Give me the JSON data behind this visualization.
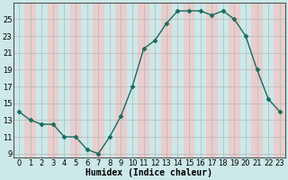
{
  "x": [
    0,
    1,
    2,
    3,
    4,
    5,
    6,
    7,
    8,
    9,
    10,
    11,
    12,
    13,
    14,
    15,
    16,
    17,
    18,
    19,
    20,
    21,
    22,
    23
  ],
  "y": [
    14,
    13,
    12.5,
    12.5,
    11,
    11,
    9.5,
    9,
    11,
    13.5,
    17,
    21.5,
    22.5,
    24.5,
    26,
    26,
    26,
    25.5,
    26,
    25,
    23,
    19,
    15.5,
    14
  ],
  "line_color": "#1a6b5e",
  "marker_color": "#1a6b5e",
  "bg_color": "#cce8e8",
  "grid_color_a": "#cce8e8",
  "grid_color_b": "#e8cece",
  "grid_line_color": "#b0b0b0",
  "xlabel": "Humidex (Indice chaleur)",
  "ylabel_ticks": [
    9,
    11,
    13,
    15,
    17,
    19,
    21,
    23,
    25
  ],
  "xlim": [
    -0.5,
    23.5
  ],
  "ylim": [
    8.5,
    27
  ],
  "xtick_labels": [
    "0",
    "1",
    "2",
    "3",
    "4",
    "5",
    "6",
    "7",
    "8",
    "9",
    "10",
    "11",
    "12",
    "13",
    "14",
    "15",
    "16",
    "17",
    "18",
    "19",
    "20",
    "21",
    "22",
    "23"
  ],
  "xlabel_fontsize": 7,
  "tick_fontsize": 6,
  "marker_size": 3,
  "line_width": 1.0
}
